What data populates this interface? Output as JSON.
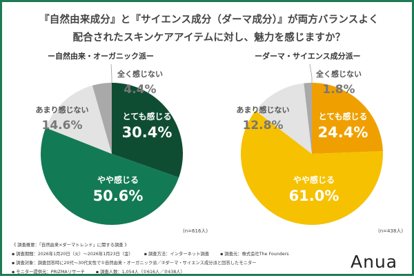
{
  "title_line1": "『自然由来成分』と『サイエンス成分（ダーマ成分）』が両方バランスよく",
  "title_line2": "配合されたスキンケアアイテムに対し、魅力を感じますか？",
  "chart_data": [
    {
      "type": "pie",
      "title": "ー自然由来・オーガニック派ー",
      "n_label": "(n=616人)",
      "categories": [
        "とても感じる",
        "やや感じる",
        "あまり感じない",
        "全く感じない"
      ],
      "values": [
        30.4,
        50.6,
        14.6,
        4.4
      ],
      "colors": [
        "#0f4d33",
        "#137a56",
        "#e3e3e3",
        "#a9a9a9"
      ]
    },
    {
      "type": "pie",
      "title": "ーダーマ・サイエンス成分派ー",
      "n_label": "(n=438人)",
      "categories": [
        "とても感じる",
        "やや感じる",
        "あまり感じない",
        "全く感じない"
      ],
      "values": [
        24.4,
        61.0,
        12.8,
        1.8
      ],
      "colors": [
        "#efa000",
        "#f6c100",
        "#e3e3e3",
        "#a9a9a9"
      ]
    }
  ],
  "footer": {
    "line1": "《 調査概要：「自然由来×ダーマトレンド」に関する調査 》",
    "period": "▪ 調査期間：2026年1月20日（火）～2026年1月23日（金）",
    "method": "▪ 調査方法：インターネット調査",
    "org": "▪ 調査元：株式会社The Founders",
    "target": "▪ 調査対象：調査回答時に20代～30代女性で①自然由来・オーガニック派／②ダーマ・サイエンス成分派と回答したモニター",
    "provider": "▪ モニター提供元：PRIZMAリサーチ",
    "count": "▪ 調査人数：1,054人（①616人／②438人）"
  },
  "logo": "Anua"
}
